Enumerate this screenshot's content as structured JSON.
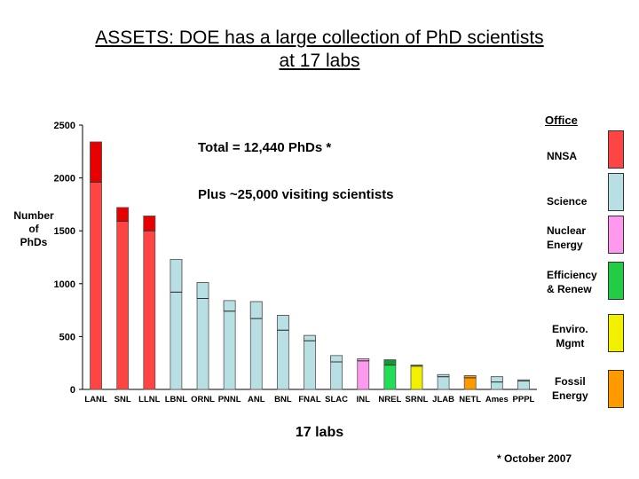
{
  "title_line1": "ASSETS: DOE has a large collection of PhD scientists",
  "title_line2": "at 17 labs",
  "annotations": {
    "total": "Total = 12,440 PhDs *",
    "visiting": "Plus ~25,000 visiting scientists"
  },
  "axis": {
    "ylabel_1": "Number",
    "ylabel_2": "of",
    "ylabel_3": "PhDs",
    "xlabel": "17 labs"
  },
  "footnote": "* October 2007",
  "legend": {
    "title": "Office",
    "items": [
      {
        "label_1": "NNSA",
        "label_2": "",
        "color": "#ff4444"
      },
      {
        "label_1": "Science",
        "label_2": "",
        "color": "#b8dfe3"
      },
      {
        "label_1": "Nuclear",
        "label_2": "Energy",
        "color": "#ff99ee"
      },
      {
        "label_1": "Efficiency",
        "label_2": "& Renew",
        "color": "#22cc44"
      },
      {
        "label_1": "Enviro.",
        "label_2": "Mgmt",
        "color": "#f0f000"
      },
      {
        "label_1": "Fossil",
        "label_2": "Energy",
        "color": "#ff9900"
      }
    ]
  },
  "chart_data": {
    "type": "bar",
    "title": "ASSETS: DOE has a large collection of PhD scientists at 17 labs",
    "xlabel": "17 labs",
    "ylabel": "Number of PhDs",
    "ylim": [
      0,
      2500
    ],
    "yticks": [
      0,
      500,
      1000,
      1500,
      2000,
      2500
    ],
    "categories": [
      "LANL",
      "SNL",
      "LLNL",
      "LBNL",
      "ORNL",
      "PNNL",
      "ANL",
      "BNL",
      "FNAL",
      "SLAC",
      "INL",
      "NREL",
      "SRNL",
      "JLAB",
      "NETL",
      "Ames",
      "PPPL"
    ],
    "values": [
      2340,
      1720,
      1640,
      1230,
      1010,
      840,
      830,
      700,
      510,
      320,
      290,
      280,
      230,
      140,
      130,
      120,
      90
    ],
    "inner_values": [
      1960,
      1590,
      1500,
      920,
      860,
      740,
      670,
      560,
      460,
      260,
      270,
      230,
      220,
      120,
      110,
      70,
      80
    ],
    "office": [
      "NNSA",
      "NNSA",
      "NNSA",
      "Science",
      "Science",
      "Science",
      "Science",
      "Science",
      "Science",
      "Science",
      "Nuclear Energy",
      "Efficiency & Renew",
      "Enviro. Mgmt",
      "Science",
      "Fossil Energy",
      "Science",
      "Science"
    ],
    "colors": {
      "NNSA": {
        "fill": "#ff4444",
        "top": "#e60000"
      },
      "Science": {
        "fill": "#b8dfe3",
        "top": "#b8dfe3"
      },
      "Nuclear Energy": {
        "fill": "#ff99ee",
        "top": "#ff99ee"
      },
      "Efficiency & Renew": {
        "fill": "#22dd55",
        "top": "#119933"
      },
      "Enviro. Mgmt": {
        "fill": "#f0f000",
        "top": "#f0f000"
      },
      "Fossil Energy": {
        "fill": "#ff9900",
        "top": "#ff9900"
      }
    },
    "grid": false,
    "legend": "right"
  }
}
